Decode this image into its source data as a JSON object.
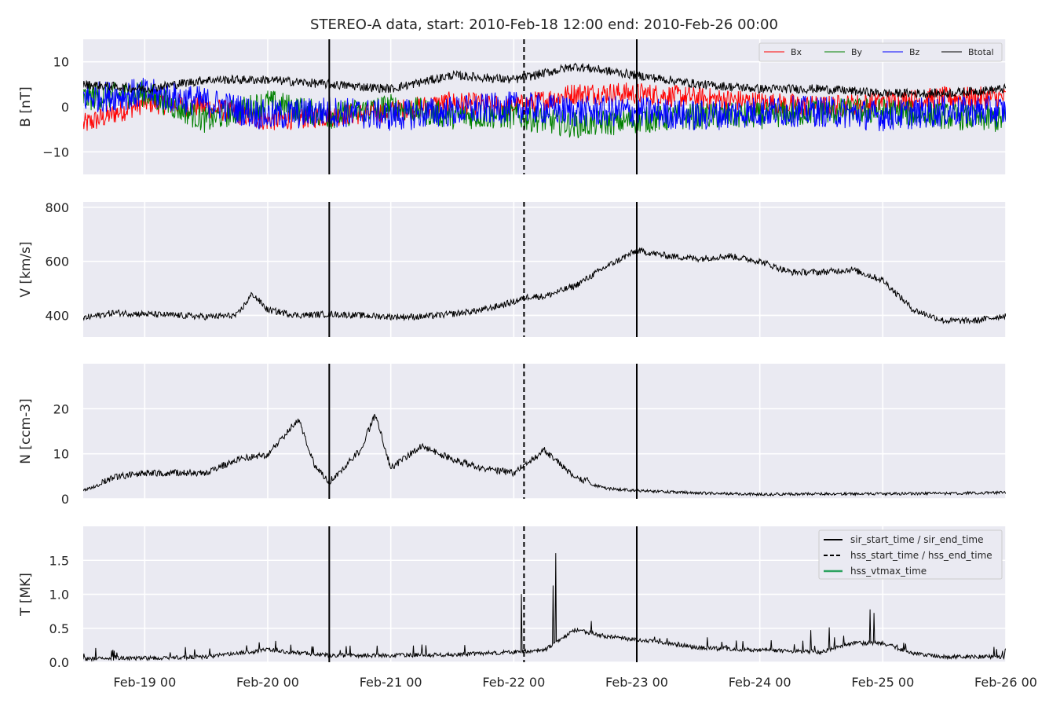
{
  "chart_data": {
    "type": "line",
    "title": "STEREO-A data, start: 2010-Feb-18 12:00  end: 2010-Feb-26 00:00",
    "x_range": [
      "2010-02-18 12:00",
      "2010-02-26 00:00"
    ],
    "x_ticks": [
      "Feb-19 00",
      "Feb-20 00",
      "Feb-21 00",
      "Feb-22 00",
      "Feb-23 00",
      "Feb-24 00",
      "Feb-25 00",
      "Feb-26 00"
    ],
    "grid": true,
    "event_lines": [
      {
        "legend": "sir_start_time / sir_end_time",
        "style": "solid",
        "color": "#000000",
        "times": [
          "2010-02-20 12:00",
          "2010-02-23 00:00"
        ]
      },
      {
        "legend": "hss_start_time / hss_end_time",
        "style": "dashed",
        "color": "#000000",
        "times": [
          "2010-02-22 02:00"
        ]
      },
      {
        "legend": "hss_vtmax_time",
        "style": "solid",
        "color": "#2ca25f",
        "times": []
      }
    ],
    "panels": [
      {
        "ylabel": "B [nT]",
        "ylim": [
          -15,
          15
        ],
        "yticks": [
          "10",
          "0",
          "−10"
        ],
        "ytick_values": [
          10,
          0,
          -10
        ],
        "legend_position": "top-right",
        "series": [
          {
            "name": "Bx",
            "color": "#ff0000",
            "x_hours": [
              0,
              12,
              24,
              36,
              48,
              60,
              72,
              84,
              96,
              108,
              120,
              132,
              144,
              156,
              168,
              180
            ],
            "values": [
              -4,
              1,
              0,
              -3,
              -2,
              -1,
              1,
              0,
              3,
              3,
              2,
              1,
              0,
              1,
              2,
              2
            ],
            "noise": 2.5
          },
          {
            "name": "By",
            "color": "#008000",
            "x_hours": [
              0,
              12,
              24,
              36,
              48,
              60,
              72,
              84,
              96,
              108,
              120,
              132,
              144,
              156,
              168,
              180
            ],
            "values": [
              2,
              3,
              -3,
              1,
              -2,
              0,
              -2,
              -2,
              -4,
              -3,
              -2,
              -2,
              -1,
              -1,
              -2,
              -3
            ],
            "noise": 3
          },
          {
            "name": "Bz",
            "color": "#0000ff",
            "x_hours": [
              0,
              12,
              24,
              36,
              48,
              60,
              72,
              84,
              96,
              108,
              120,
              132,
              144,
              156,
              168,
              180
            ],
            "values": [
              2,
              3,
              1,
              -2,
              -1,
              -2,
              -1,
              0,
              -1,
              -1,
              -2,
              -1,
              -1,
              -2,
              -1,
              -1
            ],
            "noise": 3.5
          },
          {
            "name": "Btotal",
            "color": "#000000",
            "x_hours": [
              0,
              12,
              24,
              36,
              48,
              60,
              72,
              84,
              96,
              108,
              120,
              132,
              144,
              156,
              168,
              180
            ],
            "values": [
              5,
              4,
              6,
              6,
              5,
              4,
              7,
              6,
              9,
              7,
              5,
              4,
              4,
              3,
              3,
              4
            ],
            "noise": 1
          }
        ]
      },
      {
        "ylabel": "V [km/s]",
        "ylim": [
          320,
          820
        ],
        "yticks": [
          "800",
          "600",
          "400"
        ],
        "ytick_values": [
          800,
          600,
          400
        ],
        "series": [
          {
            "name": "",
            "color": "#000000",
            "x_hours": [
              0,
              6,
              12,
              18,
              24,
              30,
              33,
              36,
              42,
              48,
              54,
              60,
              66,
              72,
              78,
              84,
              87,
              90,
              96,
              102,
              108,
              114,
              120,
              126,
              132,
              138,
              144,
              150,
              156,
              162,
              168,
              174,
              180
            ],
            "values": [
              390,
              410,
              405,
              400,
              395,
              400,
              480,
              420,
              400,
              405,
              400,
              395,
              395,
              405,
              420,
              450,
              470,
              470,
              510,
              580,
              640,
              620,
              610,
              620,
              600,
              560,
              560,
              570,
              530,
              420,
              380,
              380,
              400
            ],
            "noise": 12
          }
        ]
      },
      {
        "ylabel": "N [ccm-3]",
        "ylim": [
          0,
          30
        ],
        "yticks": [
          "20",
          "10",
          "0"
        ],
        "ytick_values": [
          20,
          10,
          0
        ],
        "series": [
          {
            "name": "",
            "color": "#000000",
            "x_hours": [
              0,
              6,
              12,
              18,
              24,
              30,
              36,
              42,
              45,
              48,
              54,
              57,
              60,
              66,
              72,
              78,
              84,
              90,
              96,
              102,
              108,
              120,
              132,
              144,
              156,
              168,
              180
            ],
            "values": [
              1.5,
              4,
              5,
              5,
              5,
              8,
              9,
              17,
              7,
              3,
              10,
              18,
              6,
              11,
              8,
              6,
              5,
              10,
              4,
              2,
              1.5,
              1,
              0.7,
              0.8,
              0.8,
              0.9,
              1.1
            ],
            "noise": 1.5
          }
        ]
      },
      {
        "ylabel": "T [MK]",
        "ylim": [
          0,
          2
        ],
        "yticks": [
          "1.5",
          "1.0",
          "0.5",
          "0.0"
        ],
        "ytick_values": [
          1.5,
          1.0,
          0.5,
          0.0
        ],
        "legend_position": "top-right",
        "series": [
          {
            "name": "",
            "color": "#000000",
            "x_hours": [
              0,
              12,
              24,
              36,
              48,
              60,
              72,
              84,
              90,
              96,
              102,
              108,
              114,
              120,
              132,
              144,
              150,
              156,
              162,
              168,
              180
            ],
            "values": [
              0.02,
              0.03,
              0.05,
              0.15,
              0.07,
              0.07,
              0.08,
              0.12,
              0.15,
              0.45,
              0.35,
              0.3,
              0.25,
              0.18,
              0.15,
              0.12,
              0.25,
              0.25,
              0.1,
              0.05,
              0.05
            ],
            "noise": 0.06
          }
        ]
      }
    ]
  }
}
